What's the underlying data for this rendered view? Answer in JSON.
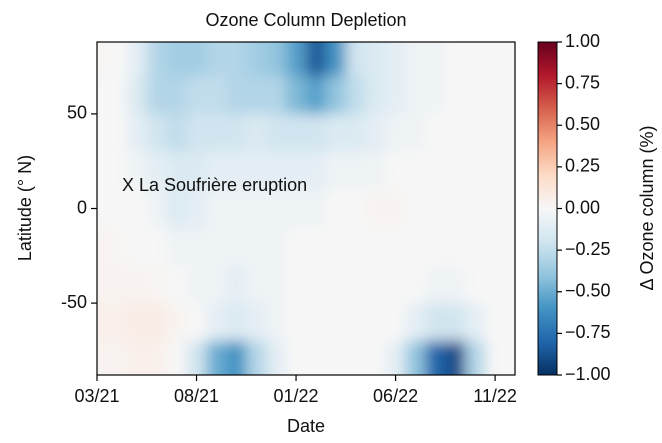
{
  "chart_data": {
    "type": "contour",
    "title": "Ozone Column Depletion",
    "x_label": "Date",
    "y_label": "Latitude (° N)",
    "colorbar_label": "Δ Ozone column (%)",
    "annotation": "X La Soufrière eruption",
    "x": [
      "03/21",
      "04/21",
      "05/21",
      "06/21",
      "07/21",
      "08/21",
      "09/21",
      "10/21",
      "11/21",
      "12/21",
      "01/22",
      "02/22",
      "03/22",
      "04/22",
      "05/22",
      "06/22",
      "07/22",
      "08/22",
      "09/22",
      "10/22",
      "11/22",
      "12/22"
    ],
    "xticks": [
      "03/21",
      "08/21",
      "01/22",
      "06/22",
      "11/22"
    ],
    "y": [
      80,
      60,
      40,
      20,
      0,
      -20,
      -40,
      -60,
      -80
    ],
    "ylim": [
      -88,
      88
    ],
    "yticks": [
      -50,
      0,
      50
    ],
    "z": [
      [
        0.02,
        0,
        -0.1,
        -0.3,
        -0.35,
        -0.35,
        -0.3,
        -0.3,
        -0.35,
        -0.4,
        -0.55,
        -0.85,
        -0.6,
        -0.2,
        -0.15,
        -0.1,
        -0.05,
        -0.05,
        0,
        0,
        0,
        0
      ],
      [
        0,
        0,
        -0.15,
        -0.3,
        -0.3,
        -0.25,
        -0.25,
        -0.3,
        -0.3,
        -0.3,
        -0.45,
        -0.55,
        -0.4,
        -0.25,
        -0.15,
        -0.1,
        -0.05,
        -0.05,
        0,
        0,
        0,
        0
      ],
      [
        0,
        0,
        -0.1,
        -0.2,
        -0.25,
        -0.2,
        -0.2,
        -0.2,
        -0.15,
        -0.2,
        -0.2,
        -0.2,
        -0.15,
        -0.15,
        -0.1,
        -0.05,
        -0.05,
        0,
        0,
        0,
        0,
        0
      ],
      [
        0,
        0,
        -0.05,
        -0.1,
        -0.15,
        -0.15,
        -0.1,
        -0.1,
        -0.1,
        -0.1,
        -0.1,
        -0.1,
        -0.05,
        -0.05,
        -0.05,
        0,
        0,
        0,
        0,
        0,
        0,
        0
      ],
      [
        0,
        0,
        0,
        -0.05,
        -0.15,
        -0.1,
        -0.05,
        -0.05,
        -0.05,
        -0.05,
        -0.05,
        -0.05,
        0,
        0,
        0.03,
        0.03,
        0,
        0,
        0,
        0,
        0,
        0
      ],
      [
        0.03,
        0.02,
        0,
        0,
        -0.05,
        -0.05,
        -0.05,
        -0.05,
        -0.05,
        -0.05,
        0,
        0,
        0,
        0,
        0,
        0,
        0,
        0,
        0,
        0,
        0,
        0
      ],
      [
        0.03,
        0.03,
        0.03,
        0.02,
        0,
        -0.05,
        -0.05,
        -0.1,
        -0.05,
        -0.05,
        0,
        0,
        0,
        0,
        0,
        0,
        0,
        -0.05,
        -0.05,
        0,
        0,
        0
      ],
      [
        0.05,
        0.05,
        0.08,
        0.08,
        0.03,
        0,
        -0.1,
        -0.15,
        -0.1,
        -0.05,
        0,
        0,
        0,
        0,
        0,
        0,
        -0.1,
        -0.2,
        -0.2,
        -0.1,
        0,
        0
      ],
      [
        0.03,
        0.03,
        0.05,
        0.05,
        0,
        -0.2,
        -0.5,
        -0.6,
        -0.3,
        -0.1,
        0,
        0,
        0,
        0,
        0,
        -0.1,
        -0.4,
        -0.8,
        -0.9,
        -0.3,
        0,
        0
      ]
    ],
    "zlim": [
      -1,
      1
    ],
    "zticks": [
      {
        "value": -1,
        "label": "−1.00"
      },
      {
        "value": -0.75,
        "label": "−0.75"
      },
      {
        "value": -0.5,
        "label": "−0.50"
      },
      {
        "value": -0.25,
        "label": "−0.25"
      },
      {
        "value": 0,
        "label": "0.00"
      },
      {
        "value": 0.25,
        "label": "0.25"
      },
      {
        "value": 0.5,
        "label": "0.50"
      },
      {
        "value": 0.75,
        "label": "0.75"
      },
      {
        "value": 1,
        "label": "1.00"
      }
    ],
    "colormap": [
      "#053061",
      "#2166ac",
      "#4393c3",
      "#92c5de",
      "#d1e5f0",
      "#f7f7f7",
      "#fddbc7",
      "#f4a582",
      "#d6604d",
      "#b2182b",
      "#67001f"
    ]
  }
}
